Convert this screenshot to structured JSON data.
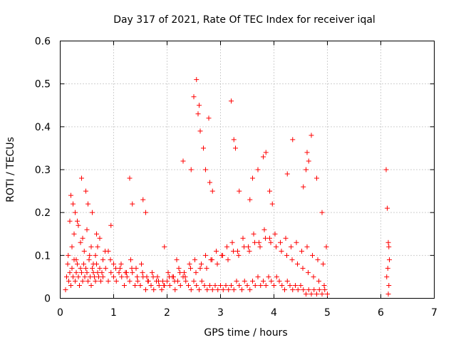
{
  "chart_data": {
    "type": "scatter",
    "title": "Day 317 of 2021, Rate Of TEC Index for receiver iqal",
    "xlabel": "GPS time / hours",
    "ylabel": "ROTI / TECUs",
    "xlim": [
      0,
      7
    ],
    "ylim": [
      0,
      0.6
    ],
    "xticks": [
      0,
      1,
      2,
      3,
      4,
      5,
      6,
      7
    ],
    "xtick_labels": [
      "0",
      "1",
      "2",
      "3",
      "4",
      "5",
      "6",
      "7"
    ],
    "yticks": [
      0,
      0.1,
      0.2,
      0.3,
      0.4,
      0.5,
      0.6
    ],
    "ytick_labels": [
      "0",
      "0.1",
      "0.2",
      "0.3",
      "0.4",
      "0.5",
      "0.6"
    ],
    "grid": true,
    "marker": "+",
    "color": "#ff0000",
    "series": [
      {
        "x": [
          0.1,
          0.12,
          0.14,
          0.16,
          0.18,
          0.2,
          0.22,
          0.24,
          0.26,
          0.28,
          0.3,
          0.32,
          0.34,
          0.36,
          0.38,
          0.4,
          0.42,
          0.44,
          0.46,
          0.48,
          0.5,
          0.52,
          0.54,
          0.56,
          0.58,
          0.6,
          0.62,
          0.64,
          0.66,
          0.68,
          0.7,
          0.72,
          0.74,
          0.76,
          0.78,
          0.8,
          0.85,
          0.9,
          0.95,
          1.0,
          1.05,
          1.1,
          1.15,
          1.2,
          1.25,
          1.3,
          1.35,
          1.4,
          1.45,
          1.5,
          1.55,
          1.6,
          1.65,
          1.7,
          1.75,
          1.8,
          1.85,
          1.9,
          1.95,
          2.0,
          2.05,
          2.1,
          2.15,
          2.2,
          2.25,
          2.3,
          2.35,
          2.4,
          2.45,
          2.5,
          2.55,
          2.6,
          2.65,
          2.7,
          2.75,
          2.8,
          2.85,
          2.9,
          2.95,
          3.0,
          3.05,
          3.1,
          3.15,
          3.2,
          3.25,
          3.3,
          3.35,
          3.4,
          3.45,
          3.5,
          3.55,
          3.6,
          3.65,
          3.7,
          3.75,
          3.8,
          3.85,
          3.9,
          3.95,
          4.0,
          4.05,
          4.1,
          4.15,
          4.2,
          4.25,
          4.3,
          4.35,
          4.4,
          4.45,
          4.5,
          4.55,
          4.6,
          4.65,
          4.7,
          4.75,
          4.8,
          4.85,
          4.9,
          4.95,
          5.0,
          0.15,
          0.22,
          0.3,
          0.38,
          0.45,
          0.55,
          0.62,
          0.7,
          0.8,
          0.9,
          1.0,
          1.12,
          1.22,
          1.32,
          1.42,
          1.52,
          1.62,
          1.72,
          1.82,
          1.92,
          2.02,
          2.12,
          2.22,
          2.32,
          2.42,
          2.52,
          2.62,
          2.72,
          2.82,
          2.92,
          3.02,
          3.12,
          3.22,
          3.32,
          3.42,
          3.52,
          3.62,
          3.72,
          3.82,
          3.92,
          4.02,
          4.12,
          4.22,
          4.32,
          4.42,
          4.52,
          4.62,
          4.72,
          4.82,
          4.92,
          0.18,
          0.26,
          0.34,
          0.42,
          0.5,
          0.58,
          0.66,
          0.74,
          0.84,
          0.94,
          1.04,
          1.14,
          1.24,
          1.34,
          1.44,
          1.54,
          1.64,
          1.74,
          1.84,
          1.94,
          2.04,
          2.14,
          2.24,
          2.34,
          2.44,
          2.54,
          2.64,
          2.74,
          2.84,
          2.94,
          3.04,
          3.14,
          3.24,
          3.34,
          3.44,
          3.54,
          3.64,
          3.74,
          3.84,
          3.94,
          4.04,
          4.14,
          4.24,
          4.34,
          4.44,
          4.54,
          4.64,
          4.74,
          4.84,
          4.94,
          0.2,
          0.24,
          0.28,
          0.32,
          0.4,
          0.48,
          0.52,
          0.6,
          0.68,
          0.95,
          1.3,
          1.35,
          1.55,
          1.6,
          1.95,
          2.18,
          2.3,
          2.45,
          2.5,
          2.55,
          2.58,
          2.6,
          2.62,
          2.68,
          2.72,
          2.78,
          2.8,
          2.85,
          3.2,
          3.25,
          3.28,
          3.35,
          3.55,
          3.6,
          3.7,
          3.8,
          3.85,
          3.92,
          3.97,
          4.25,
          4.35,
          4.55,
          4.6,
          4.62,
          4.65,
          4.7,
          4.8,
          4.9,
          4.98,
          6.1,
          6.12,
          6.14,
          6.15,
          6.16,
          6.13,
          6.11,
          6.15,
          6.14
        ],
        "y": [
          0.02,
          0.05,
          0.08,
          0.04,
          0.06,
          0.03,
          0.07,
          0.05,
          0.09,
          0.04,
          0.06,
          0.08,
          0.05,
          0.03,
          0.07,
          0.06,
          0.04,
          0.08,
          0.05,
          0.07,
          0.06,
          0.04,
          0.09,
          0.05,
          0.03,
          0.07,
          0.06,
          0.05,
          0.04,
          0.08,
          0.06,
          0.05,
          0.07,
          0.04,
          0.06,
          0.05,
          0.07,
          0.04,
          0.06,
          0.05,
          0.04,
          0.06,
          0.05,
          0.03,
          0.05,
          0.04,
          0.06,
          0.03,
          0.04,
          0.03,
          0.05,
          0.02,
          0.04,
          0.03,
          0.02,
          0.04,
          0.03,
          0.02,
          0.03,
          0.04,
          0.03,
          0.05,
          0.02,
          0.04,
          0.03,
          0.05,
          0.04,
          0.03,
          0.02,
          0.04,
          0.03,
          0.02,
          0.04,
          0.03,
          0.02,
          0.03,
          0.02,
          0.03,
          0.02,
          0.03,
          0.02,
          0.03,
          0.02,
          0.03,
          0.02,
          0.04,
          0.03,
          0.02,
          0.04,
          0.03,
          0.02,
          0.04,
          0.03,
          0.05,
          0.03,
          0.04,
          0.03,
          0.05,
          0.04,
          0.03,
          0.05,
          0.04,
          0.03,
          0.02,
          0.04,
          0.03,
          0.02,
          0.03,
          0.02,
          0.03,
          0.02,
          0.01,
          0.02,
          0.01,
          0.02,
          0.01,
          0.02,
          0.01,
          0.02,
          0.01,
          0.1,
          0.12,
          0.09,
          0.13,
          0.11,
          0.1,
          0.08,
          0.12,
          0.09,
          0.11,
          0.08,
          0.07,
          0.06,
          0.09,
          0.07,
          0.08,
          0.05,
          0.06,
          0.05,
          0.04,
          0.06,
          0.05,
          0.07,
          0.06,
          0.08,
          0.09,
          0.07,
          0.1,
          0.09,
          0.11,
          0.1,
          0.12,
          0.13,
          0.11,
          0.14,
          0.12,
          0.15,
          0.13,
          0.16,
          0.14,
          0.15,
          0.13,
          0.14,
          0.12,
          0.13,
          0.11,
          0.12,
          0.1,
          0.09,
          0.08,
          0.18,
          0.15,
          0.17,
          0.14,
          0.16,
          0.12,
          0.1,
          0.14,
          0.11,
          0.09,
          0.07,
          0.08,
          0.06,
          0.07,
          0.05,
          0.06,
          0.04,
          0.05,
          0.04,
          0.03,
          0.05,
          0.04,
          0.06,
          0.05,
          0.07,
          0.06,
          0.08,
          0.07,
          0.09,
          0.08,
          0.1,
          0.09,
          0.11,
          0.1,
          0.12,
          0.11,
          0.13,
          0.12,
          0.14,
          0.13,
          0.12,
          0.11,
          0.1,
          0.09,
          0.08,
          0.07,
          0.06,
          0.05,
          0.04,
          0.03,
          0.24,
          0.22,
          0.2,
          0.18,
          0.28,
          0.25,
          0.22,
          0.2,
          0.15,
          0.17,
          0.28,
          0.22,
          0.23,
          0.2,
          0.12,
          0.09,
          0.32,
          0.3,
          0.47,
          0.51,
          0.43,
          0.45,
          0.39,
          0.35,
          0.3,
          0.42,
          0.27,
          0.25,
          0.46,
          0.37,
          0.35,
          0.25,
          0.23,
          0.28,
          0.3,
          0.33,
          0.34,
          0.25,
          0.22,
          0.29,
          0.37,
          0.26,
          0.3,
          0.34,
          0.32,
          0.38,
          0.28,
          0.2,
          0.12,
          0.3,
          0.21,
          0.13,
          0.12,
          0.09,
          0.07,
          0.05,
          0.03,
          0.01
        ]
      }
    ]
  }
}
